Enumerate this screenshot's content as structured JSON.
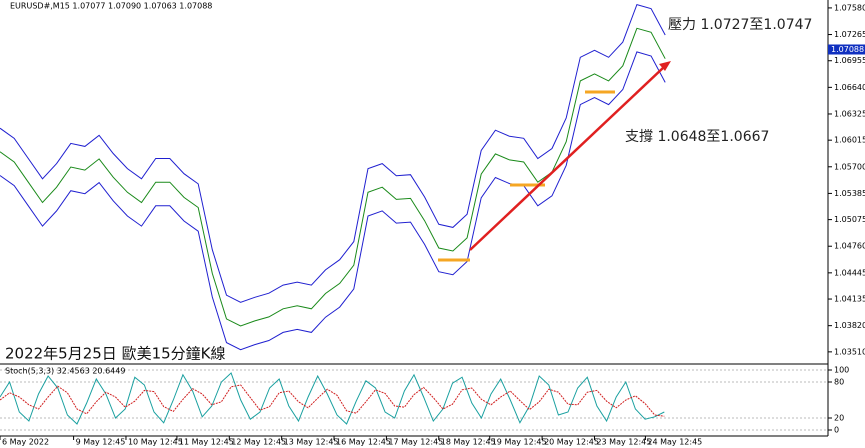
{
  "chart_data": [
    {
      "type": "line",
      "symbol_header": "EURUSD#,M15  1.07077 1.07090 1.07063 1.07088",
      "title": "2022年5月25日 歐美15分鐘K線",
      "annotations": [
        "壓力 1.0727至1.0747",
        "支撐 1.0648至1.0667"
      ],
      "last_price": {
        "value": 1.07088,
        "label": "1.07088"
      },
      "ylim": [
        1.0339,
        1.0765
      ],
      "xlim": [
        0,
        58.5
      ],
      "yticks": [
        {
          "value": 1.0758,
          "label": "1.07580"
        },
        1.07265,
        1.06955,
        {
          "value": 1.0664,
          "label": "1.06640"
        },
        1.06325,
        1.06015,
        {
          "value": 1.057,
          "label": "1.05700"
        },
        1.05385,
        1.05075,
        {
          "value": 1.0476,
          "label": "1.04760"
        },
        1.04445,
        1.04135,
        {
          "value": 1.0382,
          "label": "1.03820"
        },
        {
          "value": 1.0351,
          "label": "1.03510"
        }
      ],
      "xticks": [
        {
          "value": 0,
          "label": "6 May 2022"
        },
        {
          "value": 5.2,
          "label": "9 May 12:45"
        },
        {
          "value": 8.9,
          "label": "10 May 12:45"
        },
        {
          "value": 12.5,
          "label": "11 May 12:45"
        },
        {
          "value": 16.2,
          "label": "12 May 12:45"
        },
        {
          "value": 19.9,
          "label": "13 May 12:45"
        },
        {
          "value": 23.6,
          "label": "16 May 12:45"
        },
        {
          "value": 27.3,
          "label": "17 May 12:45"
        },
        {
          "value": 31,
          "label": "18 May 12:45"
        },
        {
          "value": 34.6,
          "label": "19 May 12:45"
        },
        {
          "value": 38.3,
          "label": "20 May 12:45"
        },
        {
          "value": 42,
          "label": "23 May 12:45"
        },
        {
          "value": 45.6,
          "label": "24 May 12:45"
        }
      ],
      "series": [
        {
          "color": "#2020d0",
          "values": [
            1.06157,
            1.06037,
            1.05798,
            1.05558,
            1.05738,
            1.05977,
            1.05941,
            1.06073,
            1.05857,
            1.05678,
            1.05558,
            1.05798,
            1.05798,
            1.05618,
            1.05498,
            1.04719,
            1.0418,
            1.04096,
            1.04156,
            1.04204,
            1.043,
            1.04336,
            1.043,
            1.0448,
            1.046,
            1.04815,
            1.05678,
            1.05738,
            1.05594,
            1.05606,
            1.05342,
            1.05019,
            1.04983,
            1.05139,
            1.05893,
            1.06133,
            1.06061,
            1.06037,
            1.05798,
            1.05917,
            1.06277,
            1.06996,
            1.07079,
            1.06996,
            1.07175,
            1.07619,
            1.07571,
            1.07259
          ]
        },
        {
          "color": "#1a8a1a",
          "values": [
            1.05877,
            1.05757,
            1.05518,
            1.05278,
            1.05458,
            1.05697,
            1.05661,
            1.05793,
            1.05577,
            1.05398,
            1.05278,
            1.05518,
            1.05518,
            1.05338,
            1.05218,
            1.04439,
            1.039,
            1.03816,
            1.03876,
            1.03924,
            1.0402,
            1.04056,
            1.0402,
            1.042,
            1.0432,
            1.04535,
            1.05398,
            1.05458,
            1.05314,
            1.05326,
            1.05062,
            1.04739,
            1.04703,
            1.04859,
            1.05613,
            1.05853,
            1.05781,
            1.05757,
            1.05518,
            1.05637,
            1.05997,
            1.06716,
            1.06799,
            1.06716,
            1.06895,
            1.07339,
            1.07291,
            1.06979
          ]
        },
        {
          "color": "#2020d0",
          "values": [
            1.05597,
            1.05477,
            1.05238,
            1.04998,
            1.05178,
            1.05417,
            1.05381,
            1.05513,
            1.05297,
            1.05118,
            1.04998,
            1.05238,
            1.05238,
            1.05058,
            1.04938,
            1.04159,
            1.0362,
            1.03536,
            1.03596,
            1.03644,
            1.0374,
            1.03776,
            1.0374,
            1.0392,
            1.0404,
            1.04255,
            1.05118,
            1.05178,
            1.05034,
            1.05046,
            1.04782,
            1.04459,
            1.04423,
            1.04579,
            1.05333,
            1.05573,
            1.05501,
            1.05477,
            1.05238,
            1.05357,
            1.05717,
            1.06436,
            1.06519,
            1.06436,
            1.06615,
            1.07059,
            1.07011,
            1.06699
          ]
        }
      ]
    },
    {
      "type": "line",
      "title": "Stoch(5,3,3) 32.4563 20.6449",
      "ylim": [
        0,
        100
      ],
      "xlim": [
        0,
        86
      ],
      "yticks": [
        100,
        80,
        20,
        0
      ],
      "series": [
        {
          "color": "#1aa0a0",
          "values": [
            55,
            80,
            30,
            15,
            60,
            90,
            70,
            25,
            10,
            45,
            85,
            60,
            20,
            35,
            88,
            75,
            30,
            12,
            50,
            92,
            65,
            22,
            40,
            80,
            95,
            50,
            18,
            30,
            70,
            85,
            40,
            15,
            55,
            90,
            60,
            25,
            10,
            48,
            82,
            70,
            30,
            20,
            65,
            92,
            55,
            15,
            35,
            78,
            88,
            45,
            20,
            60,
            85,
            50,
            12,
            40,
            90,
            75,
            25,
            30,
            70,
            88,
            40,
            15,
            55,
            80,
            35,
            18,
            22,
            30
          ]
        },
        {
          "color": "#d02020",
          "values": [
            50,
            62,
            55,
            42,
            35,
            55,
            73,
            62,
            35,
            27,
            47,
            63,
            55,
            38,
            48,
            66,
            64,
            39,
            31,
            51,
            69,
            60,
            42,
            47,
            72,
            75,
            54,
            33,
            39,
            62,
            65,
            47,
            37,
            53,
            68,
            58,
            32,
            28,
            47,
            67,
            61,
            40,
            38,
            59,
            71,
            54,
            35,
            43,
            67,
            70,
            51,
            42,
            55,
            65,
            49,
            34,
            47,
            68,
            63,
            43,
            42,
            63,
            66,
            48,
            37,
            50,
            57,
            44,
            25,
            23
          ]
        }
      ]
    }
  ]
}
